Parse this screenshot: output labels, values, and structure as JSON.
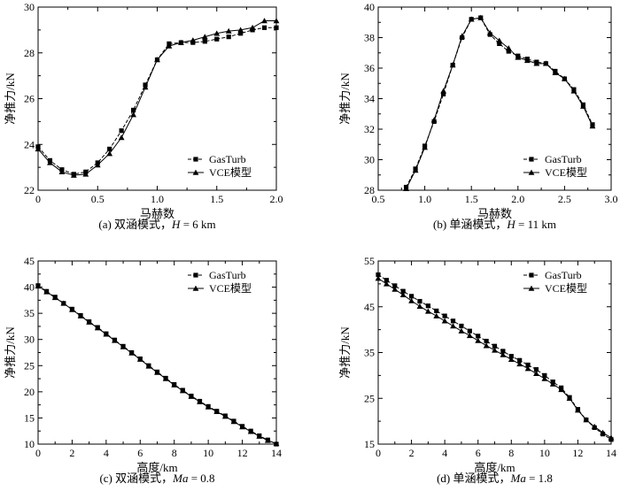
{
  "chart_data": [
    {
      "type": "line",
      "caption_prefix": "(a) 双涵模式，",
      "caption_var": "H",
      "caption_suffix": " = 6 km",
      "xlabel": "马赫数",
      "ylabel": "净推力/kN",
      "xlim": [
        0,
        2.0
      ],
      "ylim": [
        22,
        30
      ],
      "xticks": [
        0,
        0.5,
        1.0,
        1.5,
        2.0
      ],
      "xtick_labels": [
        "0",
        "0.5",
        "1.0",
        "1.5",
        "2.0"
      ],
      "yticks": [
        22,
        24,
        26,
        28,
        30
      ],
      "ytick_labels": [
        "22",
        "24",
        "26",
        "28",
        "30"
      ],
      "legend": [
        "GasTurb",
        "VCE模型"
      ],
      "series": [
        {
          "name": "GasTurb",
          "marker": "square",
          "dashed": true,
          "x": [
            0,
            0.1,
            0.2,
            0.3,
            0.4,
            0.5,
            0.6,
            0.7,
            0.8,
            0.9,
            1.0,
            1.1,
            1.2,
            1.3,
            1.4,
            1.5,
            1.6,
            1.7,
            1.8,
            1.9,
            2.0
          ],
          "y": [
            23.9,
            23.3,
            22.9,
            22.7,
            22.8,
            23.2,
            23.8,
            24.6,
            25.5,
            26.6,
            27.7,
            28.4,
            28.45,
            28.45,
            28.5,
            28.6,
            28.7,
            28.85,
            29.0,
            29.1,
            29.1
          ]
        },
        {
          "name": "VCE模型",
          "marker": "triangle",
          "dashed": false,
          "x": [
            0,
            0.1,
            0.2,
            0.3,
            0.4,
            0.5,
            0.6,
            0.7,
            0.8,
            0.9,
            1.0,
            1.1,
            1.2,
            1.3,
            1.4,
            1.5,
            1.6,
            1.7,
            1.8,
            1.9,
            2.0
          ],
          "y": [
            23.8,
            23.2,
            22.8,
            22.65,
            22.7,
            23.1,
            23.6,
            24.3,
            25.3,
            26.5,
            27.7,
            28.3,
            28.45,
            28.55,
            28.7,
            28.85,
            28.95,
            29.0,
            29.1,
            29.4,
            29.4
          ]
        }
      ]
    },
    {
      "type": "line",
      "caption_prefix": "(b) 单涵模式，",
      "caption_var": "H",
      "caption_suffix": " = 11 km",
      "xlabel": "马赫数",
      "ylabel": "净推力/kN",
      "xlim": [
        0.5,
        3.0
      ],
      "ylim": [
        28,
        40
      ],
      "xticks": [
        0.5,
        1.0,
        1.5,
        2.0,
        2.5,
        3.0
      ],
      "xtick_labels": [
        "0.5",
        "1.0",
        "1.5",
        "2.0",
        "2.5",
        "3.0"
      ],
      "yticks": [
        28,
        30,
        32,
        34,
        36,
        38,
        40
      ],
      "ytick_labels": [
        "28",
        "30",
        "32",
        "34",
        "36",
        "38",
        "40"
      ],
      "legend": [
        "GasTurb",
        "VCE模型"
      ],
      "series": [
        {
          "name": "GasTurb",
          "marker": "square",
          "dashed": true,
          "x": [
            0.8,
            0.9,
            1.0,
            1.1,
            1.2,
            1.3,
            1.4,
            1.5,
            1.6,
            1.7,
            1.8,
            1.9,
            2.0,
            2.1,
            2.2,
            2.3,
            2.4,
            2.5,
            2.6,
            2.7,
            2.8
          ],
          "y": [
            28.2,
            29.4,
            30.9,
            32.5,
            34.3,
            36.2,
            38.0,
            39.2,
            39.3,
            38.2,
            37.6,
            37.1,
            36.8,
            36.6,
            36.4,
            36.3,
            35.8,
            35.3,
            34.6,
            33.6,
            32.3
          ]
        },
        {
          "name": "VCE模型",
          "marker": "triangle",
          "dashed": false,
          "x": [
            0.8,
            0.9,
            1.0,
            1.1,
            1.2,
            1.3,
            1.4,
            1.5,
            1.6,
            1.7,
            1.8,
            1.9,
            2.0,
            2.1,
            2.2,
            2.3,
            2.4,
            2.5,
            2.6,
            2.7,
            2.8
          ],
          "y": [
            28.1,
            29.3,
            30.8,
            32.6,
            34.5,
            36.2,
            38.1,
            39.2,
            39.3,
            38.3,
            37.8,
            37.3,
            36.7,
            36.5,
            36.3,
            36.3,
            35.7,
            35.3,
            34.5,
            33.5,
            32.2
          ]
        }
      ]
    },
    {
      "type": "line",
      "caption_prefix": "(c) 双涵模式，",
      "caption_var": "Ma",
      "caption_suffix": " = 0.8",
      "xlabel": "高度/km",
      "ylabel": "净推力/kN",
      "xlim": [
        0,
        14
      ],
      "ylim": [
        10,
        45
      ],
      "xticks": [
        0,
        2,
        4,
        6,
        8,
        10,
        12,
        14
      ],
      "xtick_labels": [
        "0",
        "2",
        "4",
        "6",
        "8",
        "10",
        "12",
        "14"
      ],
      "yticks": [
        10,
        15,
        20,
        25,
        30,
        35,
        40,
        45
      ],
      "ytick_labels": [
        "10",
        "15",
        "20",
        "25",
        "30",
        "35",
        "40",
        "45"
      ],
      "legend": [
        "GasTurb",
        "VCE模型"
      ],
      "series": [
        {
          "name": "GasTurb",
          "marker": "square",
          "dashed": true,
          "x": [
            0,
            0.5,
            1,
            1.5,
            2,
            2.5,
            3,
            3.5,
            4,
            4.5,
            5,
            5.5,
            6,
            6.5,
            7,
            7.5,
            8,
            8.5,
            9,
            9.5,
            10,
            10.5,
            11,
            11.5,
            12,
            12.5,
            13,
            13.5,
            14
          ],
          "y": [
            40.3,
            39.2,
            38.1,
            36.9,
            35.8,
            34.6,
            33.4,
            32.3,
            31.1,
            29.9,
            28.7,
            27.5,
            26.3,
            25.0,
            23.8,
            22.6,
            21.4,
            20.3,
            19.2,
            18.2,
            17.2,
            16.3,
            15.4,
            14.4,
            13.4,
            12.5,
            11.6,
            10.8,
            10.0
          ]
        },
        {
          "name": "VCE模型",
          "marker": "triangle",
          "dashed": false,
          "x": [
            0,
            0.5,
            1,
            1.5,
            2,
            2.5,
            3,
            3.5,
            4,
            4.5,
            5,
            5.5,
            6,
            6.5,
            7,
            7.5,
            8,
            8.5,
            9,
            9.5,
            10,
            10.5,
            11,
            11.5,
            12,
            12.5,
            13,
            13.5,
            14
          ],
          "y": [
            40.2,
            39.1,
            38.0,
            36.9,
            35.7,
            34.5,
            33.3,
            32.2,
            31.0,
            29.8,
            28.6,
            27.4,
            26.2,
            24.9,
            23.7,
            22.5,
            21.3,
            20.2,
            19.1,
            18.1,
            17.1,
            16.2,
            15.3,
            14.3,
            13.3,
            12.4,
            11.5,
            10.7,
            10.1
          ]
        }
      ]
    },
    {
      "type": "line",
      "caption_prefix": "(d) 单涵模式，",
      "caption_var": "Ma",
      "caption_suffix": " = 1.8",
      "xlabel": "高度/km",
      "ylabel": "净推力/kN",
      "xlim": [
        0,
        14
      ],
      "ylim": [
        15,
        55
      ],
      "xticks": [
        0,
        2,
        4,
        6,
        8,
        10,
        12,
        14
      ],
      "xtick_labels": [
        "0",
        "2",
        "4",
        "6",
        "8",
        "10",
        "12",
        "14"
      ],
      "yticks": [
        15,
        25,
        35,
        45,
        55
      ],
      "ytick_labels": [
        "15",
        "25",
        "35",
        "45",
        "55"
      ],
      "legend": [
        "GasTurb",
        "VCE模型"
      ],
      "series": [
        {
          "name": "GasTurb",
          "marker": "square",
          "dashed": true,
          "x": [
            0,
            0.5,
            1,
            1.5,
            2,
            2.5,
            3,
            3.5,
            4,
            4.5,
            5,
            5.5,
            6,
            6.5,
            7,
            7.5,
            8,
            8.5,
            9,
            9.5,
            10,
            10.5,
            11,
            11.5,
            12,
            12.5,
            13,
            13.5,
            14
          ],
          "y": [
            52.0,
            50.8,
            49.6,
            48.4,
            47.3,
            46.2,
            45.2,
            44.1,
            43.0,
            41.9,
            40.8,
            39.7,
            38.6,
            37.5,
            36.4,
            35.3,
            34.2,
            33.3,
            32.3,
            31.3,
            30.0,
            28.6,
            27.3,
            25.2,
            22.6,
            20.3,
            18.6,
            17.2,
            16.0
          ]
        },
        {
          "name": "VCE模型",
          "marker": "triangle",
          "dashed": false,
          "x": [
            0,
            0.5,
            1,
            1.5,
            2,
            2.5,
            3,
            3.5,
            4,
            4.5,
            5,
            5.5,
            6,
            6.5,
            7,
            7.5,
            8,
            8.5,
            9,
            9.5,
            10,
            10.5,
            11,
            11.5,
            12,
            12.5,
            13,
            13.5,
            14
          ],
          "y": [
            51.2,
            50.0,
            48.8,
            47.6,
            46.3,
            45.1,
            44.0,
            43.0,
            41.9,
            40.8,
            39.7,
            38.7,
            37.6,
            36.5,
            35.5,
            34.5,
            33.5,
            32.5,
            31.5,
            30.4,
            29.3,
            28.1,
            26.9,
            25.0,
            22.4,
            20.3,
            18.8,
            17.5,
            16.4
          ]
        }
      ]
    }
  ]
}
